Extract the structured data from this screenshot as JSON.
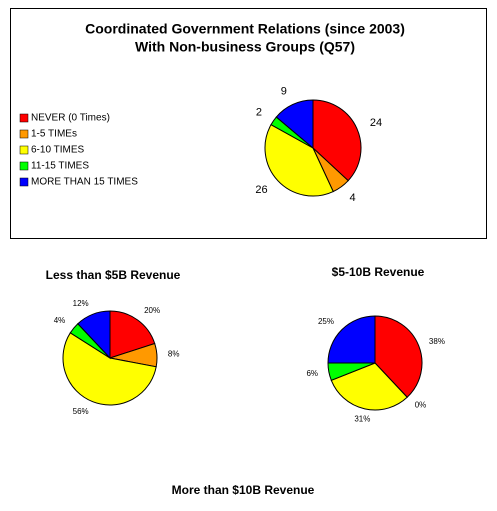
{
  "chart_data": [
    {
      "type": "pie",
      "title": "Coordinated Government Relations (since 2003)",
      "subtitle": "With Non-business Groups (Q57)",
      "categories": [
        "NEVER (0 Times)",
        "1-5 TIMEs",
        "6-10 TIMES",
        "11-15 TIMES",
        "MORE THAN 15 TIMES"
      ],
      "values": [
        24,
        4,
        26,
        2,
        9
      ],
      "colors": [
        "#ff0000",
        "#ff9900",
        "#ffff00",
        "#00ff00",
        "#0000ff"
      ],
      "legend": "left"
    },
    {
      "type": "pie",
      "title": "Less than $5B Revenue",
      "values": [
        20,
        8,
        56,
        4,
        12
      ],
      "value_labels": [
        "20%",
        "8%",
        "56%",
        "4%",
        "12%"
      ],
      "colors": [
        "#ff0000",
        "#ff9900",
        "#ffff00",
        "#00ff00",
        "#0000ff"
      ]
    },
    {
      "type": "pie",
      "title": "$5-10B Revenue",
      "values": [
        38,
        0,
        31,
        6,
        25
      ],
      "value_labels": [
        "38%",
        "0%",
        "31%",
        "6%",
        "25%"
      ],
      "colors": [
        "#ff0000",
        "#ff9900",
        "#ffff00",
        "#00ff00",
        "#0000ff"
      ]
    },
    {
      "type": "pie",
      "title": "More than $10B Revenue"
    }
  ]
}
